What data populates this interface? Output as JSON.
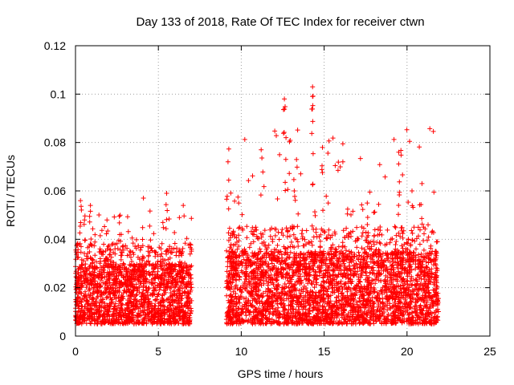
{
  "chart_data": {
    "type": "scatter",
    "title": "Day 133 of 2018, Rate Of TEC Index for receiver ctwn",
    "xlabel": "GPS time / hours",
    "ylabel": "ROTI / TECUs",
    "xlim": [
      0,
      25
    ],
    "ylim": [
      0,
      0.12
    ],
    "xticks": [
      0,
      5,
      10,
      15,
      20,
      25
    ],
    "yticks": [
      0,
      0.02,
      0.04,
      0.06,
      0.08,
      0.1,
      0.12
    ],
    "xtick_labels": [
      "0",
      "5",
      "10",
      "15",
      "20",
      "25"
    ],
    "ytick_labels": [
      "0",
      "0.02",
      "0.04",
      "0.06",
      "0.08",
      "0.1",
      "0.12"
    ],
    "grid": true,
    "marker": "+",
    "color": "#ff0000",
    "series": [
      {
        "name": "ROTI",
        "segments": [
          {
            "x_range": [
              0.0,
              7.0
            ],
            "typical_range": [
              0.005,
              0.03
            ],
            "max": 0.06
          },
          {
            "x_range": [
              9.1,
              21.9
            ],
            "typical_range": [
              0.005,
              0.035
            ],
            "max": 0.103
          }
        ],
        "peaks": [
          {
            "x": 0.3,
            "y": 0.056
          },
          {
            "x": 0.9,
            "y": 0.054
          },
          {
            "x": 1.9,
            "y": 0.048
          },
          {
            "x": 2.7,
            "y": 0.05
          },
          {
            "x": 4.1,
            "y": 0.057
          },
          {
            "x": 5.5,
            "y": 0.059
          },
          {
            "x": 6.5,
            "y": 0.054
          },
          {
            "x": 9.2,
            "y": 0.072
          },
          {
            "x": 11.2,
            "y": 0.077
          },
          {
            "x": 12.6,
            "y": 0.098
          },
          {
            "x": 12.7,
            "y": 0.082
          },
          {
            "x": 13.2,
            "y": 0.06
          },
          {
            "x": 14.3,
            "y": 0.103
          },
          {
            "x": 14.3,
            "y": 0.099
          },
          {
            "x": 14.9,
            "y": 0.078
          },
          {
            "x": 17.6,
            "y": 0.055
          },
          {
            "x": 19.5,
            "y": 0.076
          },
          {
            "x": 20.3,
            "y": 0.06
          },
          {
            "x": 20.9,
            "y": 0.063
          }
        ]
      }
    ]
  }
}
